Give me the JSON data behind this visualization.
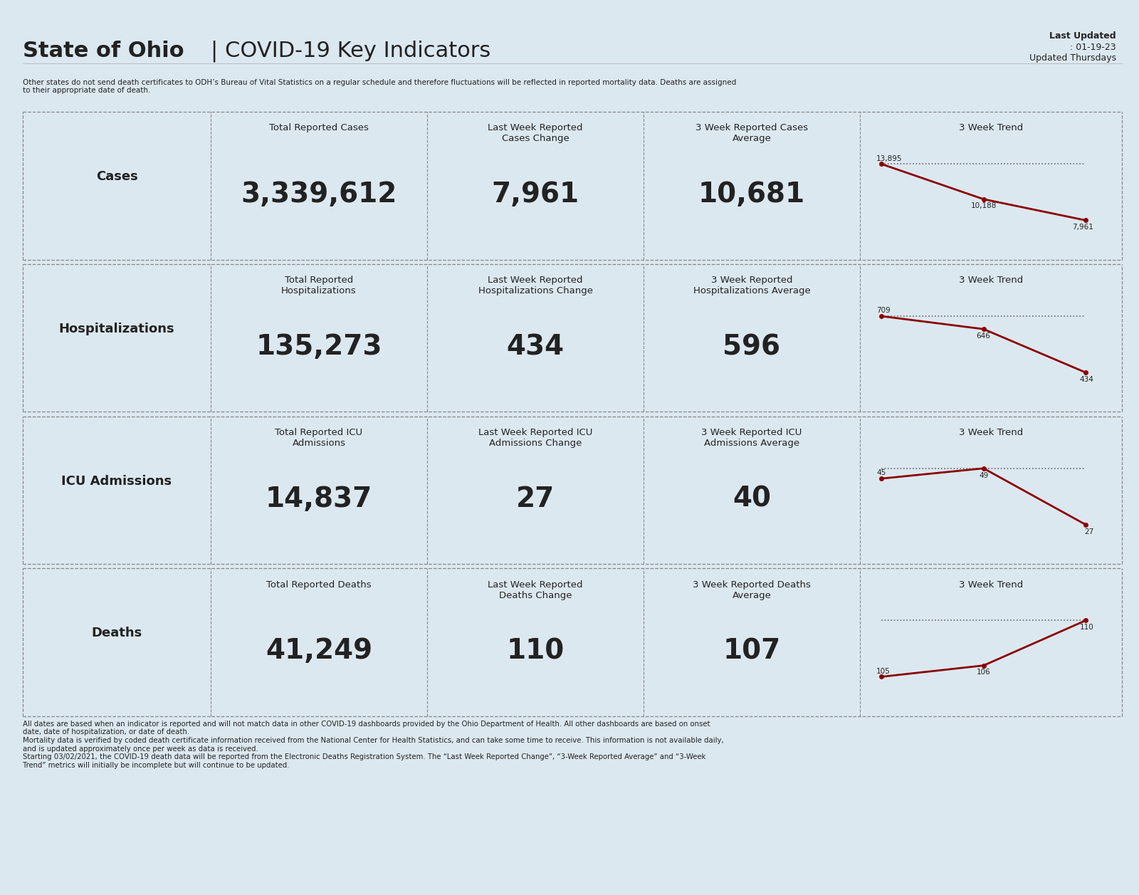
{
  "bg_color": "#dce8f0",
  "title_bold": "State of Ohio",
  "title_regular": " | COVID-19 Key Indicators",
  "last_updated": "Last Updated: 01-19-23\nUpdated Thursdays",
  "disclaimer_top": "Other states do not send death certificates to ODH’s Bureau of Vital Statistics on a regular schedule and therefore fluctuations will be reflected in reported mortality data. Deaths are assigned\nto their appropriate date of death.",
  "disclaimer_bottom": "All dates are based when an indicator is reported and will not match data in other COVID-19 dashboards provided by the Ohio Department of Health. All other dashboards are based on onset\ndate, date of hospitalization, or date of death.\nMortality data is verified by coded death certificate information received from the National Center for Health Statistics, and can take some time to receive. This information is not available daily,\nand is updated approximately once per week as data is received.\nStarting 03/02/2021, the COVID-19 death data will be reported from the Electronic Deaths Registration System. The “Last Week Reported Change”, “3-Week Reported Average” and “3-Week\nTrend” metrics will initially be incomplete but will continue to be updated.",
  "rows": [
    {
      "label": "Cases",
      "col1_header_normal": "Total Reported ",
      "col1_header_bold": "Cases",
      "col2_header_normal": "Last Week Reported\n",
      "col2_header_bold": "Cases",
      "col2_header_suffix": " Change",
      "col3_header_normal": "3 Week Reported ",
      "col3_header_bold": "Cases",
      "col3_header_suffix": "\nAverage",
      "col1_value": "3,339,612",
      "col2_value": "7,961",
      "col3_value": "10,681",
      "trend_values": [
        13895,
        10188,
        7961
      ],
      "trend_labels": [
        "13,895",
        "10,188",
        "7,961"
      ]
    },
    {
      "label": "Hospitalizations",
      "col1_header_normal": "Total Reported\n",
      "col1_header_bold": "Hospitalizations",
      "col2_header_normal": "Last Week Reported\n",
      "col2_header_bold": "Hospitalizations",
      "col2_header_suffix": " Change",
      "col3_header_normal": "3 Week Reported\n",
      "col3_header_bold": "Hospitalizations",
      "col3_header_suffix": " Average",
      "col1_value": "135,273",
      "col2_value": "434",
      "col3_value": "596",
      "trend_values": [
        709,
        646,
        434
      ],
      "trend_labels": [
        "709",
        "646",
        "434"
      ]
    },
    {
      "label": "ICU Admissions",
      "col1_header_normal": "Total Reported ",
      "col1_header_bold": "ICU\nAdmissions",
      "col2_header_normal": "Last Week Reported ",
      "col2_header_bold": "ICU\nAdmissions",
      "col2_header_suffix": " Change",
      "col3_header_normal": "3 Week Reported ",
      "col3_header_bold": "ICU\nAdmissions",
      "col3_header_suffix": " Average",
      "col1_value": "14,837",
      "col2_value": "27",
      "col3_value": "40",
      "trend_values": [
        45,
        49,
        27
      ],
      "trend_labels": [
        "45",
        "49",
        "27"
      ]
    },
    {
      "label": "Deaths",
      "col1_header_normal": "Total Reported ",
      "col1_header_bold": "Deaths",
      "col2_header_normal": "Last Week Reported\n",
      "col2_header_bold": "Deaths",
      "col2_header_suffix": " Change",
      "col3_header_normal": "3 Week Reported ",
      "col3_header_bold": "Deaths",
      "col3_header_suffix": "\nAverage",
      "col1_value": "41,249",
      "col2_value": "110",
      "col3_value": "107",
      "trend_values": [
        105,
        106,
        110
      ],
      "trend_labels": [
        "105",
        "106",
        "110"
      ]
    }
  ],
  "dark_red": "#8b0000",
  "dotted_color": "#555555",
  "box_border_color": "#555555",
  "text_color": "#222222",
  "value_fontsize": 28,
  "header_fontsize": 10,
  "label_fontsize": 14
}
